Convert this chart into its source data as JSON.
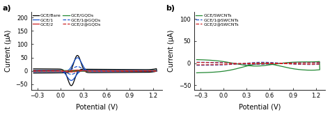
{
  "panel_a": {
    "title": "a)",
    "ylabel": "Current (μA)",
    "xlabel": "Potential (V)",
    "xlim": [
      -0.38,
      1.32
    ],
    "ylim": [
      -70,
      220
    ],
    "yticks": [
      -50,
      0,
      50,
      100,
      150,
      200
    ],
    "xticks": [
      -0.3,
      0.0,
      0.3,
      0.6,
      0.9,
      1.2
    ],
    "curves": [
      {
        "label": "GCE/Bare",
        "color": "#000000",
        "ls": "-"
      },
      {
        "label": "GCE/1",
        "color": "#1a52cc",
        "ls": "-"
      },
      {
        "label": "GCE/2",
        "color": "#cc2020",
        "ls": "-"
      },
      {
        "label": "GCE/GQDs",
        "color": "#228833",
        "ls": "-"
      },
      {
        "label": "GCE/1@GQDs",
        "color": "#1a52cc",
        "ls": "--"
      },
      {
        "label": "GCE/2@GQDs",
        "color": "#cc2020",
        "ls": "--"
      }
    ]
  },
  "panel_b": {
    "title": "b)",
    "ylabel": "Current (μA)",
    "xlabel": "Potential (V)",
    "xlim": [
      -0.38,
      1.32
    ],
    "ylim": [
      -60,
      115
    ],
    "yticks": [
      -50,
      0,
      50,
      100
    ],
    "xticks": [
      -0.3,
      0.0,
      0.3,
      0.6,
      0.9,
      1.2
    ],
    "curves": [
      {
        "label": "GCE/SWCNTs",
        "color": "#228833",
        "ls": "-"
      },
      {
        "label": "GCE/1@SWCNTs",
        "color": "#1a52cc",
        "ls": "--"
      },
      {
        "label": "GCE/2@SWCNTs",
        "color": "#cc2020",
        "ls": "--"
      }
    ]
  },
  "background_color": "#ffffff",
  "lw": 0.9
}
